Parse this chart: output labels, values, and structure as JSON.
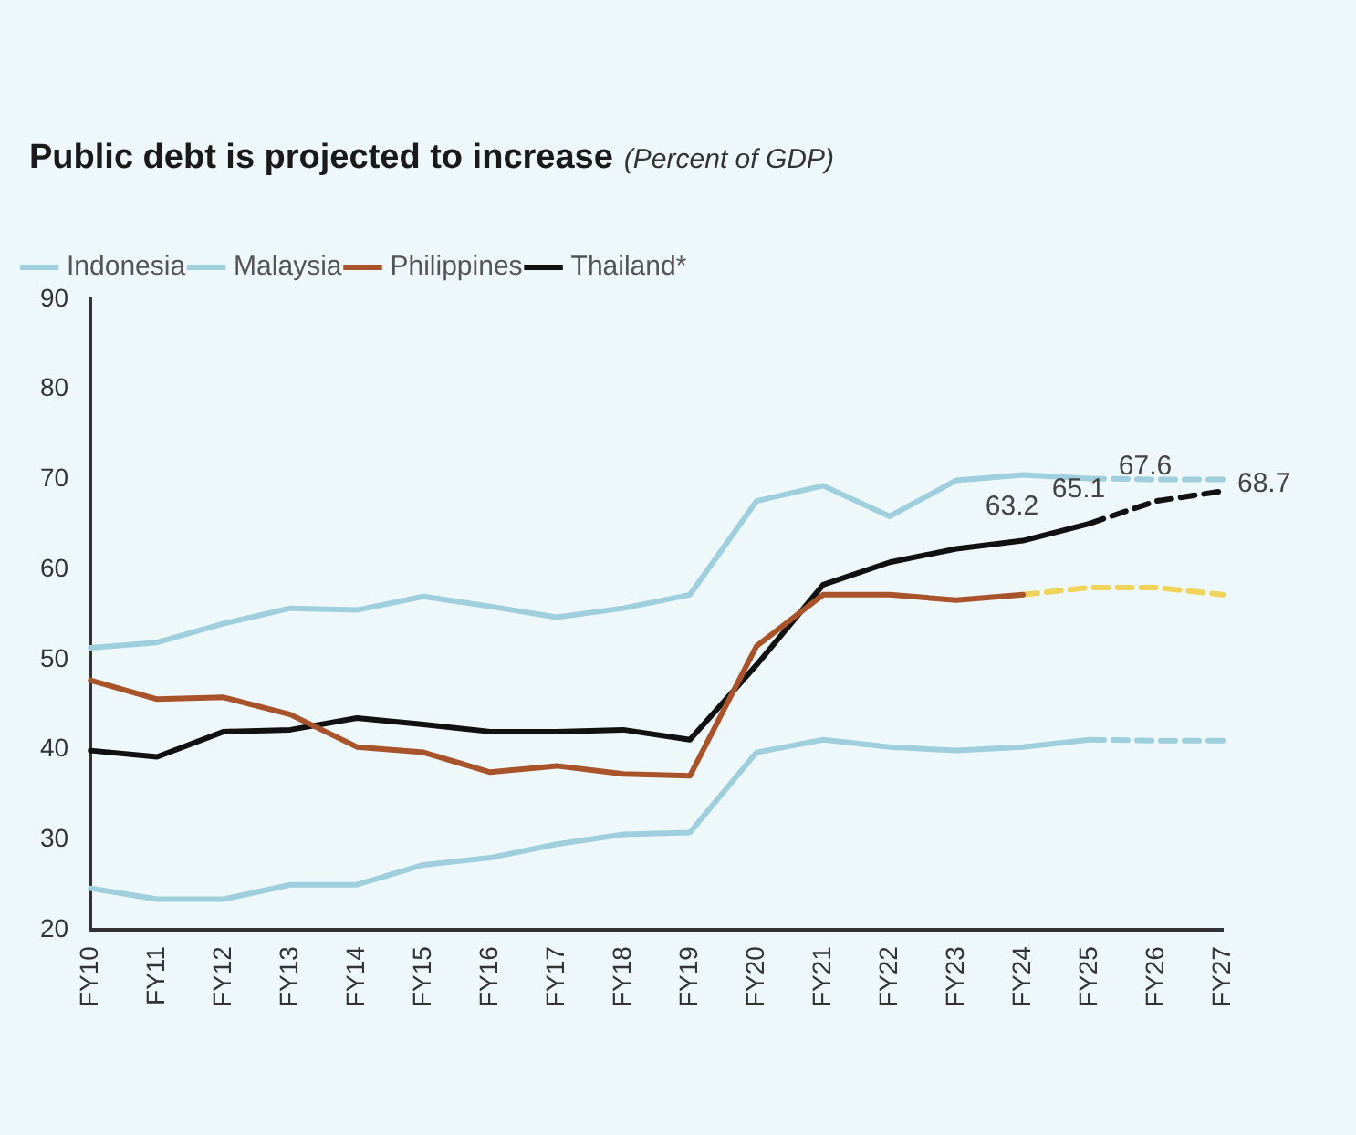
{
  "chart_data": {
    "type": "line",
    "title": "Public debt is projected to increase",
    "subtitle": "(Percent of GDP)",
    "categories": [
      "FY10",
      "FY11",
      "FY12",
      "FY13",
      "FY14",
      "FY15",
      "FY16",
      "FY17",
      "FY18",
      "FY19",
      "FY20",
      "FY21",
      "FY22",
      "FY23",
      "FY24",
      "FY25",
      "FY26",
      "FY27"
    ],
    "ylim": [
      20,
      90
    ],
    "yticks": [
      20,
      30,
      40,
      50,
      60,
      70,
      80,
      90
    ],
    "grid": false,
    "legend": "top left",
    "marker": "none",
    "series": [
      {
        "name": "Indonesia",
        "color": "#9fcfdc",
        "line_style": "solid",
        "values": [
          24.6,
          23.4,
          23.4,
          25,
          25,
          27.2,
          28,
          29.5,
          30.6,
          30.8,
          39.7,
          41.1,
          40.3,
          39.9,
          40.3,
          41.1,
          null,
          null
        ]
      },
      {
        "name": "Malaysia",
        "color": "#9fcfdc",
        "line_style": "solid",
        "values": [
          51.3,
          51.9,
          54,
          55.7,
          55.5,
          57,
          55.9,
          54.7,
          55.7,
          57.2,
          67.6,
          69.3,
          65.9,
          69.9,
          70.5,
          70.1,
          null,
          null
        ]
      },
      {
        "name": "Philippines",
        "color": "#a9532a",
        "line_style": "solid",
        "values": [
          47.7,
          45.6,
          45.8,
          43.9,
          40.3,
          39.7,
          37.5,
          38.2,
          37.3,
          37.1,
          51.5,
          57.2,
          57.2,
          56.6,
          57.2,
          null,
          null,
          null
        ]
      },
      {
        "name": "Thailand*",
        "color": "#111111",
        "line_style": "solid",
        "values": [
          39.9,
          39.2,
          42,
          42.2,
          43.5,
          42.8,
          42,
          42,
          42.2,
          41.1,
          49.4,
          58.3,
          60.8,
          62.3,
          63.2,
          65.1,
          null,
          null
        ],
        "value_labels": [
          null,
          null,
          null,
          null,
          null,
          null,
          null,
          null,
          null,
          null,
          null,
          null,
          null,
          null,
          "63.2",
          "65.1",
          null,
          null
        ]
      },
      {
        "color": "#9fcfdc",
        "line_style": "dashed",
        "values": [
          null,
          null,
          null,
          null,
          null,
          null,
          null,
          null,
          null,
          null,
          null,
          null,
          null,
          null,
          null,
          41.1,
          41,
          41
        ]
      },
      {
        "color": "#9fcfdc",
        "line_style": "dashed",
        "values": [
          null,
          null,
          null,
          null,
          null,
          null,
          null,
          null,
          null,
          null,
          null,
          null,
          null,
          null,
          null,
          70.1,
          70,
          70
        ]
      },
      {
        "color": "#f0d35a",
        "line_style": "dashed",
        "values": [
          null,
          null,
          null,
          null,
          null,
          null,
          null,
          null,
          null,
          null,
          null,
          null,
          null,
          null,
          57.2,
          58,
          58,
          57.2
        ]
      },
      {
        "color": "#111111",
        "line_style": "dashed",
        "values": [
          null,
          null,
          null,
          null,
          null,
          null,
          null,
          null,
          null,
          null,
          null,
          null,
          null,
          null,
          null,
          65.1,
          67.6,
          68.7
        ],
        "value_labels": [
          null,
          null,
          null,
          null,
          null,
          null,
          null,
          null,
          null,
          null,
          null,
          null,
          null,
          null,
          null,
          null,
          "67.6",
          "68.7"
        ]
      }
    ]
  }
}
